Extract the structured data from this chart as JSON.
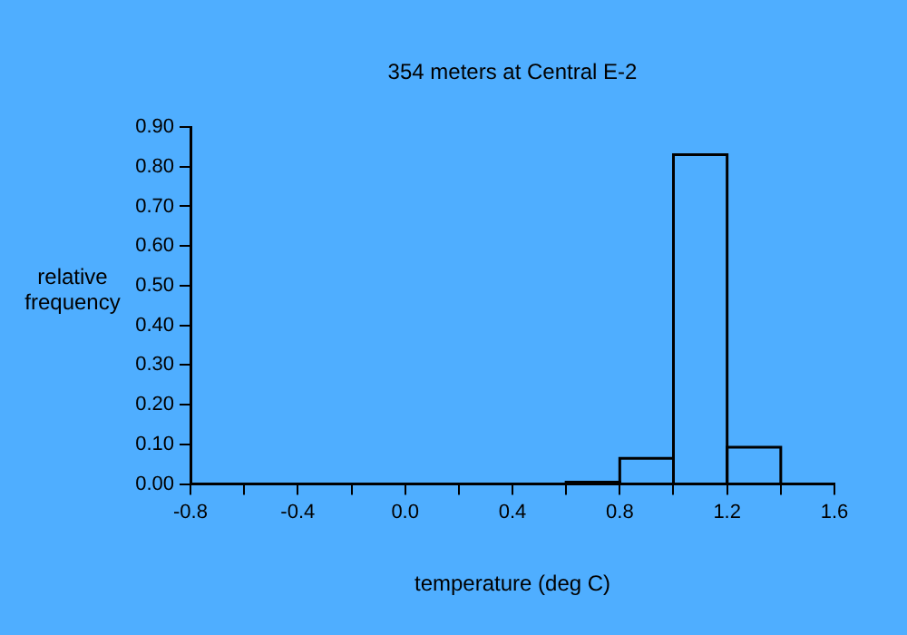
{
  "chart_data": {
    "type": "histogram",
    "title": "354 meters at Central E-2",
    "xlabel": "temperature (deg C)",
    "ylabel": "relative frequency",
    "bins": [
      0.6,
      0.8,
      1.0,
      1.2,
      1.4
    ],
    "values": [
      0.005,
      0.065,
      0.83,
      0.093
    ],
    "color": "#000000",
    "xlim": [
      -0.8,
      1.6
    ],
    "xticks": [
      {
        "value": -0.8,
        "label": "-0.8"
      },
      {
        "value": -0.6,
        "label": null
      },
      {
        "value": -0.4,
        "label": "-0.4"
      },
      {
        "value": -0.2,
        "label": null
      },
      {
        "value": 0,
        "label": "0.0"
      },
      {
        "value": 0.2,
        "label": null
      },
      {
        "value": 0.4,
        "label": "0.4"
      },
      {
        "value": 0.6,
        "label": null
      },
      {
        "value": 0.8,
        "label": "0.8"
      },
      {
        "value": 1.0,
        "label": null
      },
      {
        "value": 1.2,
        "label": "1.2"
      },
      {
        "value": 1.4,
        "label": null
      },
      {
        "value": 1.6,
        "label": "1.6"
      }
    ],
    "ylim": [
      0,
      0.9
    ],
    "yticks": [
      {
        "value": 0,
        "label": "0.00"
      },
      {
        "value": 0.1,
        "label": "0.10"
      },
      {
        "value": 0.2,
        "label": "0.20"
      },
      {
        "value": 0.3,
        "label": "0.30"
      },
      {
        "value": 0.4,
        "label": "0.40"
      },
      {
        "value": 0.5,
        "label": "0.50"
      },
      {
        "value": 0.6,
        "label": "0.60"
      },
      {
        "value": 0.7,
        "label": "0.70"
      },
      {
        "value": 0.8,
        "label": "0.80"
      },
      {
        "value": 0.9,
        "label": "0.90"
      }
    ],
    "grid": false,
    "legend": false
  }
}
